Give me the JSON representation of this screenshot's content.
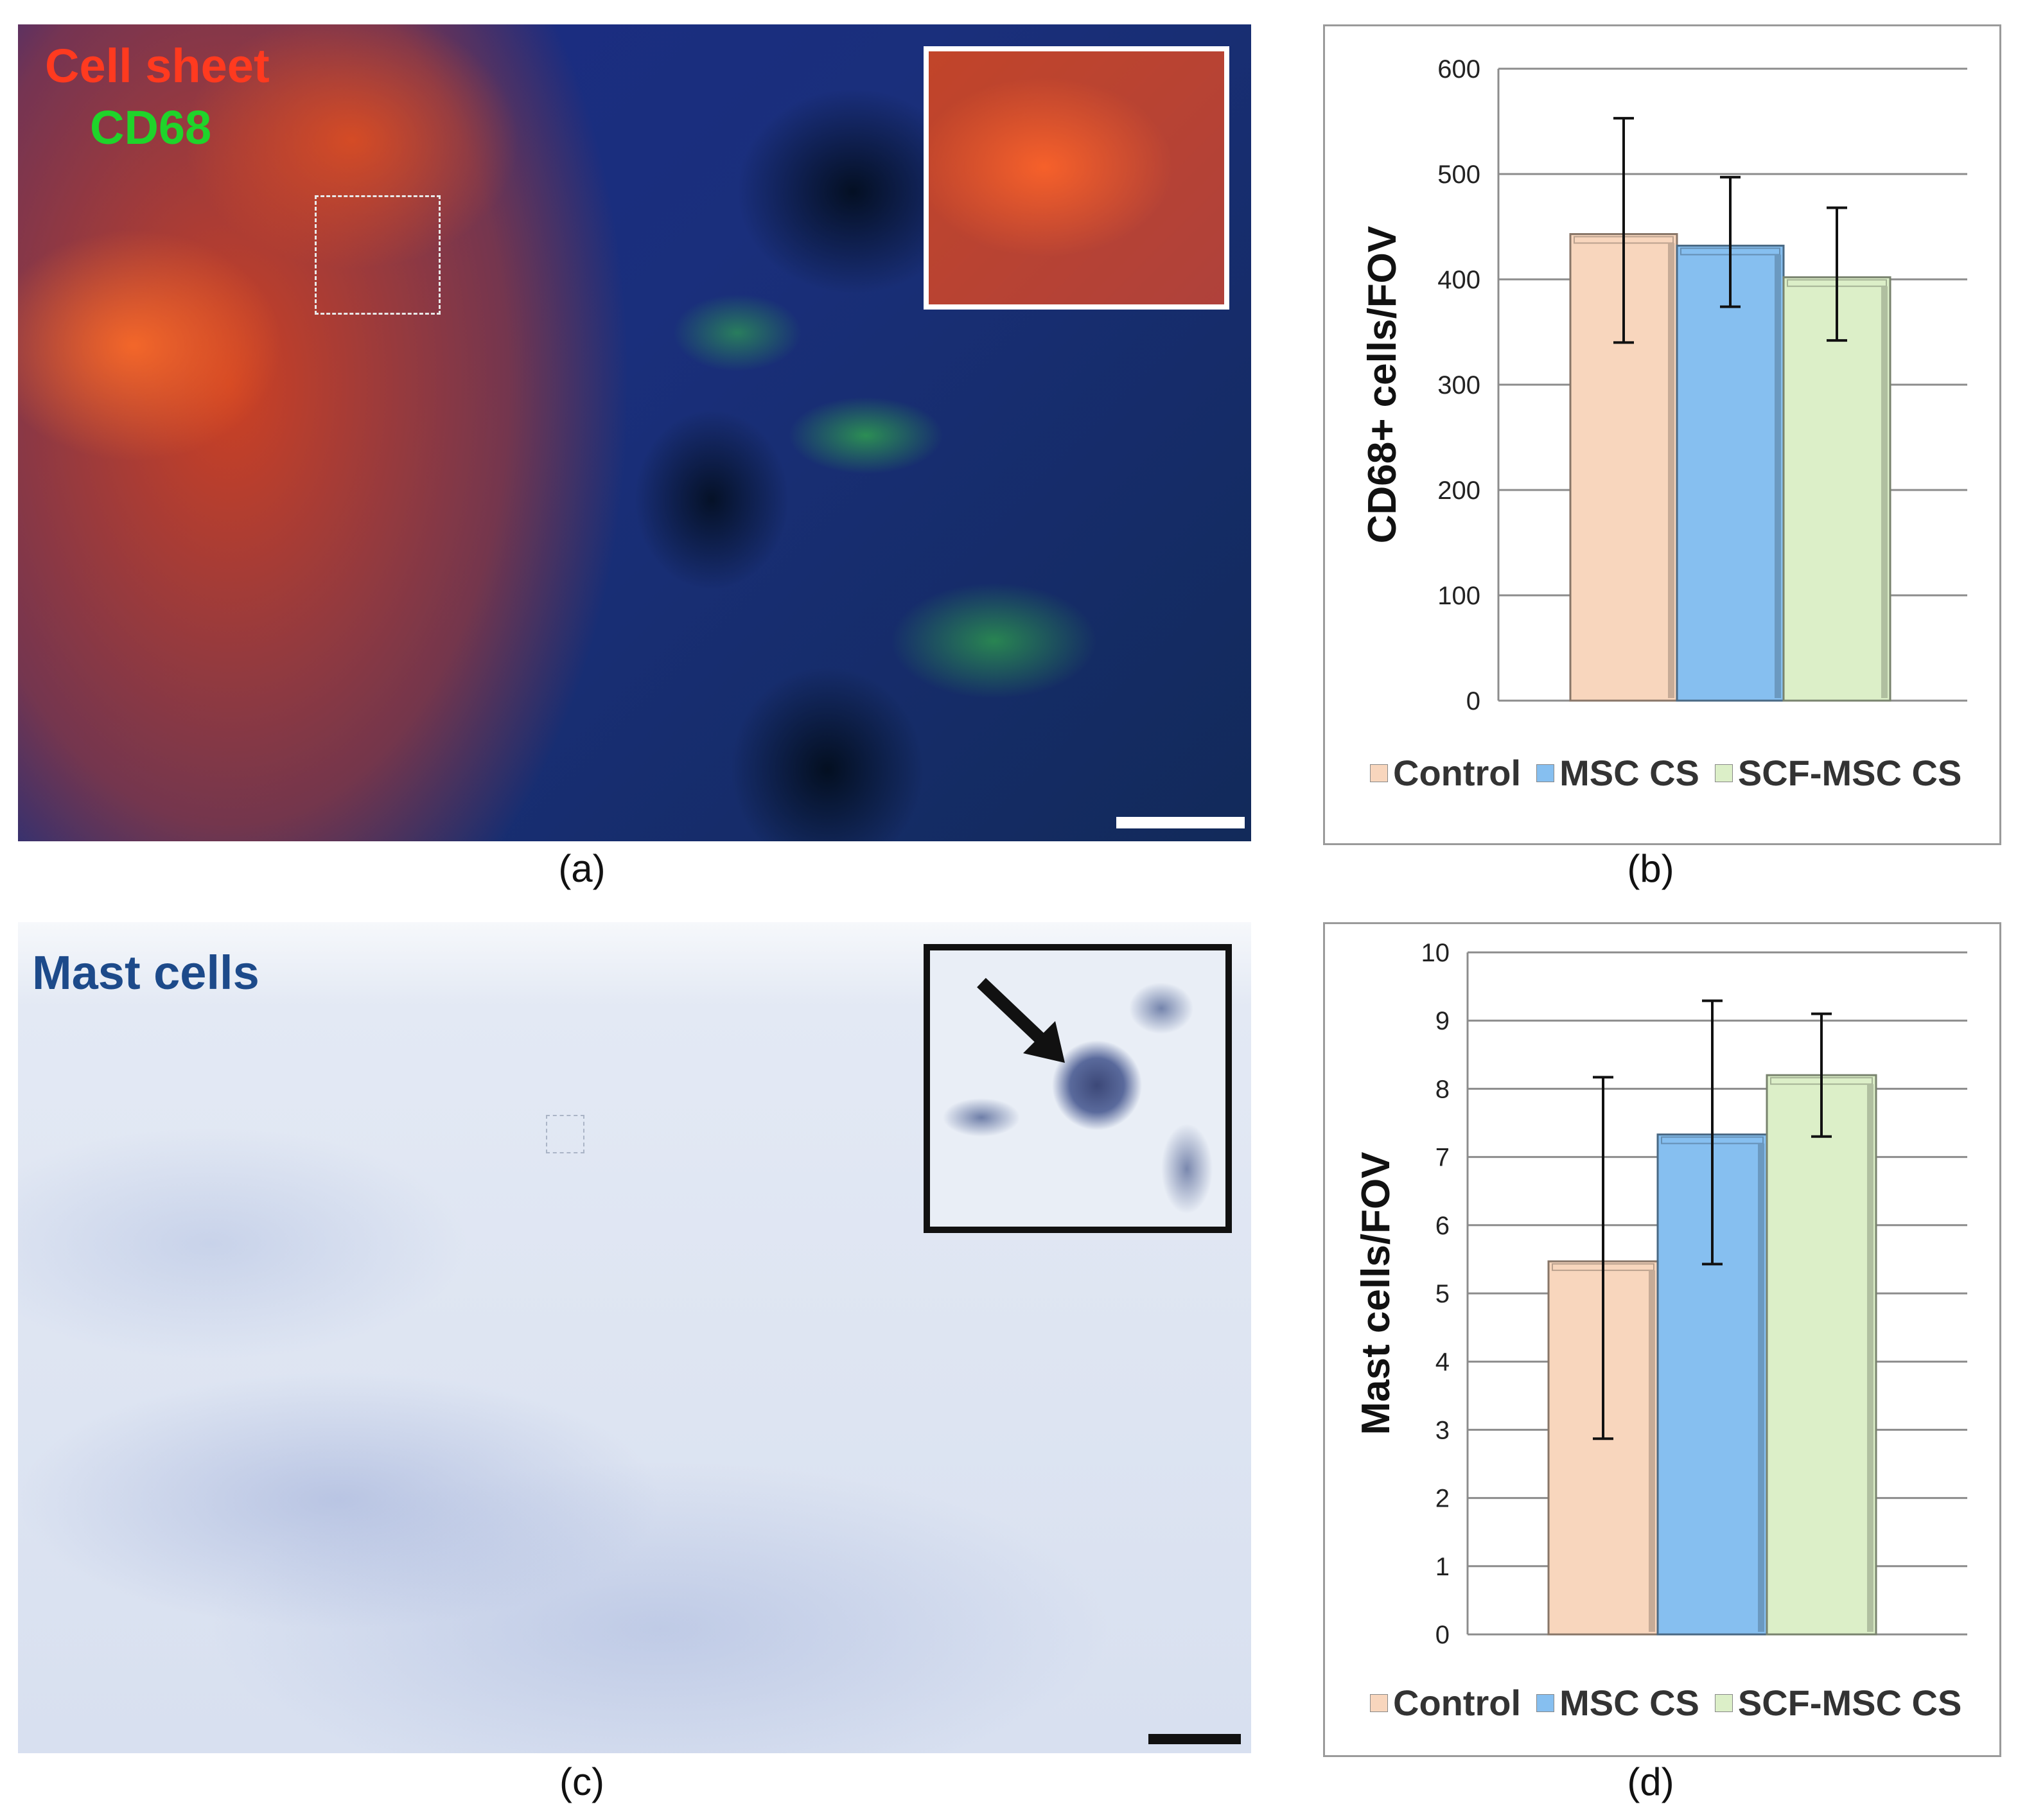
{
  "panel_a": {
    "caption": "(a)",
    "label_line1": "Cell sheet",
    "label_line2": "CD68",
    "label_color1": "#ff3a1f",
    "label_color2": "#1fd42a"
  },
  "panel_c": {
    "caption": "(c)",
    "label": "Mast cells",
    "label_color": "#1d4a8a"
  },
  "panel_b_caption": "(b)",
  "panel_d_caption": "(d)",
  "chart_data": [
    {
      "type": "bar",
      "ylabel": "CD68+ cells/FOV",
      "ylim": [
        0,
        600
      ],
      "yticks": [
        "0",
        "100",
        "200",
        "300",
        "400",
        "500",
        "600"
      ],
      "tick_values": [
        0,
        100,
        200,
        300,
        400,
        500,
        600
      ],
      "grid": true,
      "legend": "bottom",
      "series": [
        {
          "name": "Control",
          "value": 443,
          "err_low": 340,
          "err_high": 553,
          "color": "#f8d6bd"
        },
        {
          "name": "MSC CS",
          "value": 432,
          "err_low": 374,
          "err_high": 497,
          "color": "#86bff0"
        },
        {
          "name": "SCF-MSC CS",
          "value": 402,
          "err_low": 342,
          "err_high": 468,
          "color": "#dcefc8"
        }
      ]
    },
    {
      "type": "bar",
      "ylabel": "Mast cells/FOV",
      "ylim": [
        0,
        10
      ],
      "yticks": [
        "0",
        "1",
        "2",
        "3",
        "4",
        "5",
        "6",
        "7",
        "8",
        "9",
        "10"
      ],
      "tick_values": [
        0,
        1,
        2,
        3,
        4,
        5,
        6,
        7,
        8,
        9,
        10
      ],
      "grid": true,
      "legend": "bottom",
      "series": [
        {
          "name": "Control",
          "value": 5.47,
          "err_low": 2.87,
          "err_high": 8.17,
          "color": "#f8d6bd"
        },
        {
          "name": "MSC CS",
          "value": 7.33,
          "err_low": 5.43,
          "err_high": 9.29,
          "color": "#86bff0"
        },
        {
          "name": "SCF-MSC CS",
          "value": 8.2,
          "err_low": 7.3,
          "err_high": 9.1,
          "color": "#dcefc8"
        }
      ]
    }
  ]
}
